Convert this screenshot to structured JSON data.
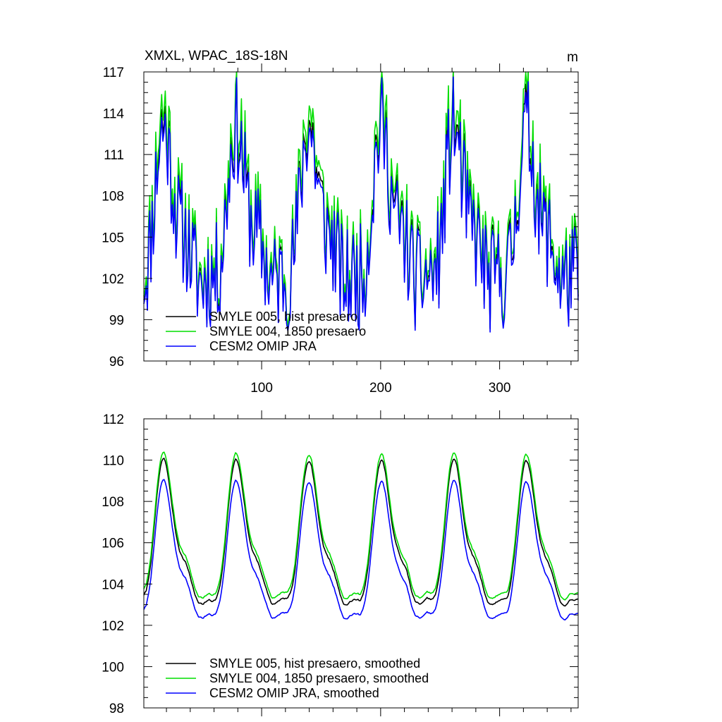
{
  "chart_data": [
    {
      "type": "line",
      "title": "XMXL, WPAC_18S-18N",
      "units_label": "m",
      "x_tick_labels": [
        "100",
        "200",
        "300"
      ],
      "x_ticks": [
        100,
        200,
        300
      ],
      "xlim": [
        1,
        366
      ],
      "ylim": [
        96,
        117
      ],
      "y_ticks": [
        96,
        99,
        102,
        105,
        108,
        111,
        114,
        117
      ],
      "y_tick_labels": [
        "96",
        "99",
        "102",
        "105",
        "108",
        "111",
        "114",
        "117"
      ],
      "legend_position": "bottom-left",
      "series": [
        {
          "name": "SMYLE 005, hist presaero",
          "color": "#000000",
          "base": 106.0,
          "amplitude": 1.0,
          "offset": 0.0
        },
        {
          "name": "SMYLE 004, 1850 presaero",
          "color": "#00dd00",
          "base": 106.0,
          "amplitude": 1.06,
          "offset": 0.6
        },
        {
          "name": "CESM2 OMIP JRA",
          "color": "#0000ff",
          "base": 106.0,
          "amplitude": 0.98,
          "offset": -0.4
        }
      ]
    },
    {
      "type": "line",
      "title": "",
      "units_label": "",
      "x_tick_labels": [],
      "x_ticks": [
        100,
        200,
        300
      ],
      "xlim": [
        1,
        366
      ],
      "ylim": [
        98,
        112
      ],
      "y_ticks": [
        98,
        100,
        102,
        104,
        106,
        108,
        110,
        112
      ],
      "y_tick_labels": [
        "98",
        "100",
        "102",
        "104",
        "106",
        "108",
        "110",
        "112"
      ],
      "legend_position": "bottom-left",
      "series": [
        {
          "name": "SMYLE 005, hist presaero, smoothed",
          "color": "#000000",
          "base": 105.5,
          "amplitude": 1.0,
          "offset": 0.0
        },
        {
          "name": "SMYLE 004, 1850 presaero, smoothed",
          "color": "#00dd00",
          "base": 105.5,
          "amplitude": 1.0,
          "offset": 0.3
        },
        {
          "name": "CESM2 OMIP JRA, smoothed",
          "color": "#0000ff",
          "base": 105.5,
          "amplitude": 0.95,
          "offset": -0.8
        }
      ]
    }
  ]
}
